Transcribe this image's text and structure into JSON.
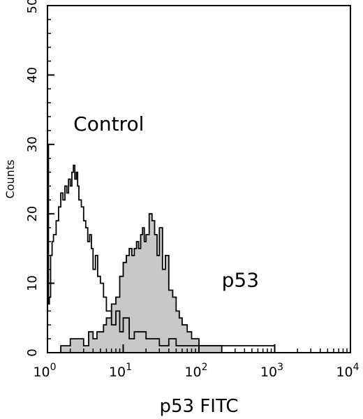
{
  "chart_data": {
    "type": "area",
    "title": "",
    "xlabel": "p53 FITC",
    "ylabel": "Counts",
    "x_scale": "log",
    "xlim": [
      1,
      10000
    ],
    "ylim": [
      0,
      50
    ],
    "x_ticks": [
      {
        "value": 1,
        "base": "10",
        "exp": "0"
      },
      {
        "value": 10,
        "base": "10",
        "exp": "1"
      },
      {
        "value": 100,
        "base": "10",
        "exp": "2"
      },
      {
        "value": 1000,
        "base": "10",
        "exp": "3"
      },
      {
        "value": 10000,
        "base": "10",
        "exp": "4"
      }
    ],
    "y_ticks": [
      "0",
      "10",
      "20",
      "30",
      "40",
      "50"
    ],
    "grid": false,
    "legend": "none",
    "annotations": [
      {
        "text": "Control",
        "x": 2.2,
        "y": 32
      },
      {
        "text": "p53",
        "x": 200,
        "y": 9.5
      }
    ],
    "series": [
      {
        "fill": "#c8c8c8",
        "stroke": "#000000",
        "x": [
          1,
          1.2,
          1.5,
          2,
          2.5,
          3,
          3.5,
          4,
          4.5,
          5,
          5.5,
          6,
          7,
          8,
          9,
          10,
          11,
          12,
          13,
          14,
          15,
          16,
          17,
          18,
          19,
          20,
          22,
          24,
          26,
          28,
          30,
          33,
          36,
          40,
          45,
          50,
          55,
          60,
          70,
          80,
          90,
          100,
          120,
          150,
          200,
          300,
          500,
          1000
        ],
        "values": [
          0,
          0,
          1,
          2,
          2,
          1,
          3,
          2,
          3,
          3,
          4,
          5,
          7,
          8,
          11,
          13,
          14,
          15,
          14,
          15,
          16,
          15,
          17,
          18,
          16,
          17,
          20,
          19,
          17,
          14,
          18,
          12,
          14,
          9,
          8,
          6,
          5,
          4,
          3,
          2,
          2,
          1,
          1,
          1,
          0,
          0,
          0,
          0
        ]
      },
      {
        "fill": "none",
        "stroke": "#000000",
        "x": [
          1,
          1.03,
          1.06,
          1.1,
          1.15,
          1.2,
          1.3,
          1.4,
          1.5,
          1.6,
          1.7,
          1.8,
          1.9,
          2,
          2.1,
          2.2,
          2.3,
          2.4,
          2.5,
          2.6,
          2.8,
          3,
          3.2,
          3.4,
          3.6,
          3.8,
          4,
          4.3,
          4.6,
          5,
          5.5,
          6,
          7,
          8,
          9,
          10,
          12,
          14,
          17,
          20,
          25,
          30,
          40,
          50,
          60,
          80,
          100,
          150,
          200,
          300,
          500,
          1000
        ],
        "values": [
          30,
          7,
          8,
          14,
          16,
          17,
          19,
          21,
          23,
          22,
          24,
          23,
          25,
          24,
          26,
          27,
          25,
          26,
          24,
          22,
          21,
          19,
          18,
          16,
          17,
          15,
          12,
          14,
          11,
          10,
          8,
          6,
          4,
          6,
          3,
          5,
          2,
          3,
          3,
          2,
          2,
          1,
          2,
          1,
          1,
          1,
          1,
          1,
          1,
          1,
          1,
          0
        ]
      }
    ]
  }
}
